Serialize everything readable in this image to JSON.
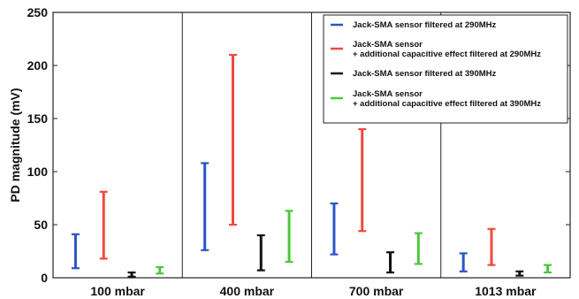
{
  "chart_data": {
    "type": "range-bar",
    "ylabel": "PD magnitude (mV)",
    "ylim": [
      0,
      250
    ],
    "yticks": [
      "0",
      "50",
      "100",
      "150",
      "200",
      "250"
    ],
    "categories": [
      "100 mbar",
      "400 mbar",
      "700 mbar",
      "1013 mbar"
    ],
    "grid": false,
    "legend_position": "top-right",
    "series": [
      {
        "name": "Jack-SMA sensor filtered at 290MHz",
        "name_lines": [
          "Jack-SMA sensor filtered at 290MHz"
        ],
        "color": "#2a55c8",
        "ranges": [
          [
            9,
            41
          ],
          [
            26,
            108
          ],
          [
            22,
            70
          ],
          [
            6,
            23
          ]
        ]
      },
      {
        "name": "Jack-SMA sensor + additional capacitive effect filtered at 290MHz",
        "name_lines": [
          "Jack-SMA sensor",
          "+ additional capacitive effect filtered at 290MHz"
        ],
        "color": "#f04a3c",
        "ranges": [
          [
            18,
            81
          ],
          [
            50,
            210
          ],
          [
            44,
            140
          ],
          [
            12,
            46
          ]
        ]
      },
      {
        "name": "Jack-SMA sensor filtered at 390MHz",
        "name_lines": [
          "Jack-SMA sensor filtered at 390MHz"
        ],
        "color": "#111111",
        "ranges": [
          [
            1,
            5
          ],
          [
            7,
            40
          ],
          [
            5,
            24
          ],
          [
            2,
            6
          ]
        ]
      },
      {
        "name": "Jack-SMA sensor + additional capacitive effect filtered at 390MHz",
        "name_lines": [
          "Jack-SMA sensor",
          "+ additional capacitive effect filtered at 390MHz"
        ],
        "color": "#4cc83c",
        "ranges": [
          [
            4,
            10
          ],
          [
            15,
            63
          ],
          [
            13,
            42
          ],
          [
            5,
            12
          ]
        ]
      }
    ]
  }
}
